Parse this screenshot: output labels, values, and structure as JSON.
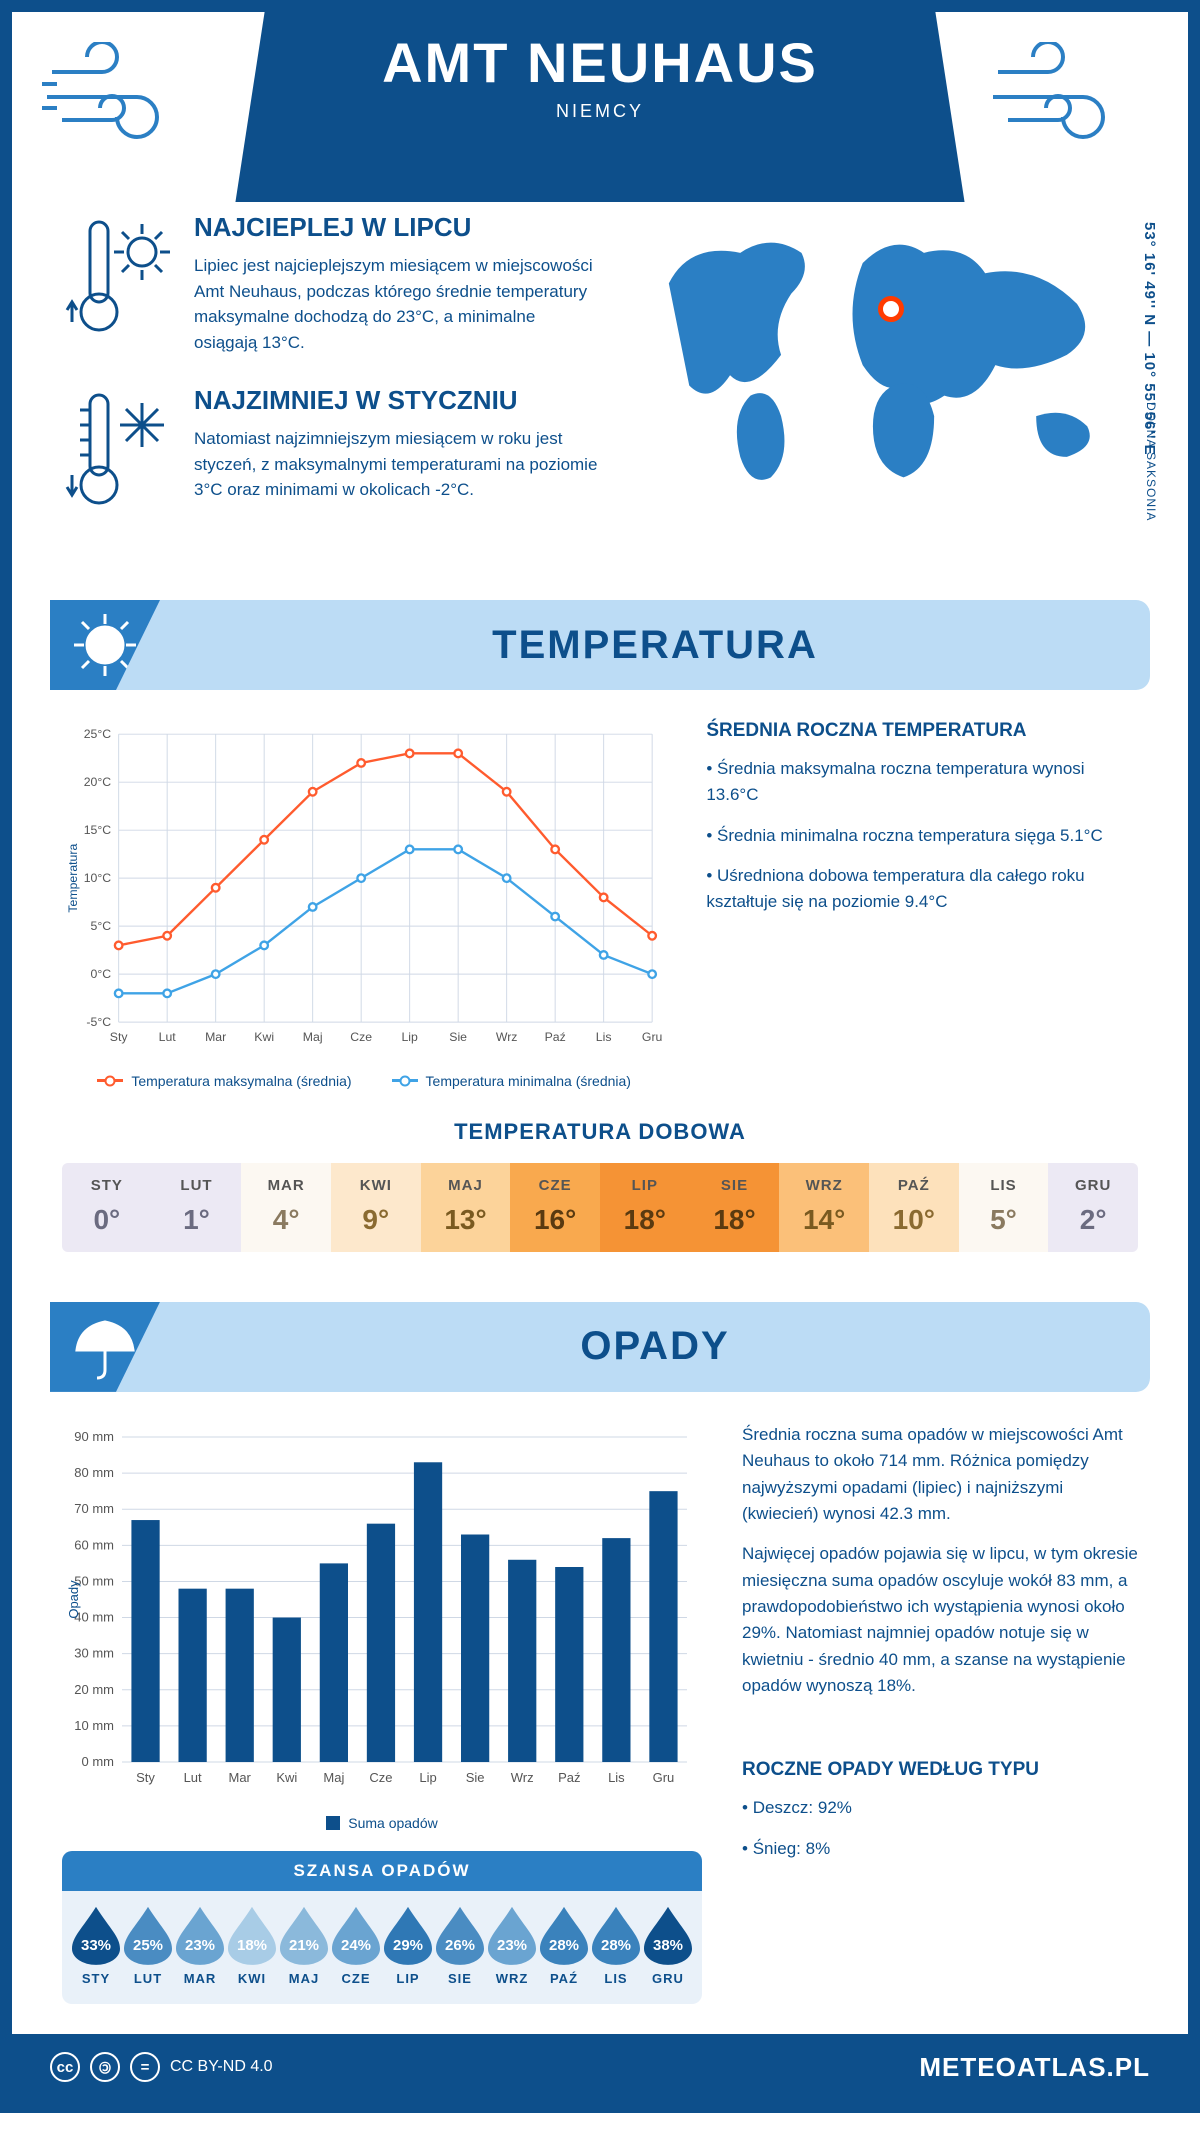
{
  "header": {
    "title": "AMT NEUHAUS",
    "country": "NIEMCY"
  },
  "geo": {
    "coords": "53° 16' 49'' N — 10° 55' 56'' E",
    "region": "DOLNA SAKSONIA",
    "marker": {
      "left_pct": 49,
      "top_pct": 30
    }
  },
  "facts": {
    "warm": {
      "title": "NAJCIEPLEJ W LIPCU",
      "text": "Lipiec jest najcieplejszym miesiącem w miejscowości Amt Neuhaus, podczas którego średnie temperatury maksymalne dochodzą do 23°C, a minimalne osiągają 13°C."
    },
    "cold": {
      "title": "NAJZIMNIEJ W STYCZNIU",
      "text": "Natomiast najzimniejszym miesiącem w roku jest styczeń, z maksymalnymi temperaturami na poziomie 3°C oraz minimami w okolicach -2°C."
    }
  },
  "temperature": {
    "section_title": "TEMPERATURA",
    "side_title": "ŚREDNIA ROCZNA TEMPERATURA",
    "bullets": [
      "Średnia maksymalna roczna temperatura wynosi 13.6°C",
      "Średnia minimalna roczna temperatura sięga 5.1°C",
      "Uśredniona dobowa temperatura dla całego roku kształtuje się na poziomie 9.4°C"
    ],
    "chart": {
      "months": [
        "Sty",
        "Lut",
        "Mar",
        "Kwi",
        "Maj",
        "Cze",
        "Lip",
        "Sie",
        "Wrz",
        "Paź",
        "Lis",
        "Gru"
      ],
      "max": [
        3,
        4,
        9,
        14,
        19,
        22,
        23,
        23,
        19,
        13,
        8,
        4
      ],
      "min": [
        -2,
        -2,
        0,
        3,
        7,
        10,
        13,
        13,
        10,
        6,
        2,
        0
      ],
      "y_ticks": [
        -5,
        0,
        5,
        10,
        15,
        20,
        25
      ],
      "y_axis_label": "Temperatura",
      "colors": {
        "max": "#ff5b2e",
        "min": "#3fa3e6",
        "grid": "#cfd8e5"
      },
      "legend_max": "Temperatura maksymalna (średnia)",
      "legend_min": "Temperatura minimalna (średnia)"
    },
    "daily_table": {
      "title": "TEMPERATURA DOBOWA",
      "months": [
        "STY",
        "LUT",
        "MAR",
        "KWI",
        "MAJ",
        "CZE",
        "LIP",
        "SIE",
        "WRZ",
        "PAŹ",
        "LIS",
        "GRU"
      ],
      "values": [
        "0°",
        "1°",
        "4°",
        "9°",
        "13°",
        "16°",
        "18°",
        "18°",
        "14°",
        "10°",
        "5°",
        "2°"
      ],
      "bg_colors": [
        "#ece9f4",
        "#ece9f4",
        "#fcf8f2",
        "#fde8cc",
        "#fcd39a",
        "#f9a94e",
        "#f59335",
        "#f59335",
        "#fbc079",
        "#fde1bb",
        "#fcf8f2",
        "#ece9f4"
      ],
      "text_colors": [
        "#6b6b80",
        "#6b6b80",
        "#8a7a60",
        "#8a6a30",
        "#7a5a20",
        "#5a3a10",
        "#5a3a10",
        "#5a3a10",
        "#7a5a20",
        "#8a6a30",
        "#8a7a60",
        "#6b6b80"
      ]
    }
  },
  "precip": {
    "section_title": "OPADY",
    "chart": {
      "months": [
        "Sty",
        "Lut",
        "Mar",
        "Kwi",
        "Maj",
        "Cze",
        "Lip",
        "Sie",
        "Wrz",
        "Paź",
        "Lis",
        "Gru"
      ],
      "values_mm": [
        67,
        48,
        48,
        40,
        55,
        66,
        83,
        63,
        56,
        54,
        62,
        75
      ],
      "y_ticks": [
        0,
        10,
        20,
        30,
        40,
        50,
        60,
        70,
        80,
        90
      ],
      "y_axis_label": "Opady",
      "bar_color": "#0d4f8b",
      "legend": "Suma opadów"
    },
    "text1": "Średnia roczna suma opadów w miejscowości Amt Neuhaus to około 714 mm. Różnica pomiędzy najwyższymi opadami (lipiec) i najniższymi (kwiecień) wynosi 42.3 mm.",
    "text2": "Najwięcej opadów pojawia się w lipcu, w tym okresie miesięczna suma opadów oscyluje wokół 83 mm, a prawdopodobieństwo ich wystąpienia wynosi około 29%. Natomiast najmniej opadów notuje się w kwietniu - średnio 40 mm, a szanse na wystąpienie opadów wynoszą 18%.",
    "chance": {
      "title": "SZANSA OPADÓW",
      "months": [
        "STY",
        "LUT",
        "MAR",
        "KWI",
        "MAJ",
        "CZE",
        "LIP",
        "SIE",
        "WRZ",
        "PAŹ",
        "LIS",
        "GRU"
      ],
      "pct": [
        33,
        25,
        23,
        18,
        21,
        24,
        29,
        26,
        23,
        28,
        28,
        38
      ],
      "colors": [
        "#0d4f8b",
        "#4a8cc2",
        "#6aa4d1",
        "#a8cce6",
        "#8bb9db",
        "#6aa4d1",
        "#2f78b5",
        "#4a8cc2",
        "#6aa4d1",
        "#3a82bc",
        "#3a82bc",
        "#0d4f8b"
      ]
    },
    "by_type": {
      "title": "ROCZNE OPADY WEDŁUG TYPU",
      "items": [
        "Deszcz: 92%",
        "Śnieg: 8%"
      ]
    }
  },
  "footer": {
    "license": "CC BY-ND 4.0",
    "brand": "METEOATLAS.PL"
  }
}
